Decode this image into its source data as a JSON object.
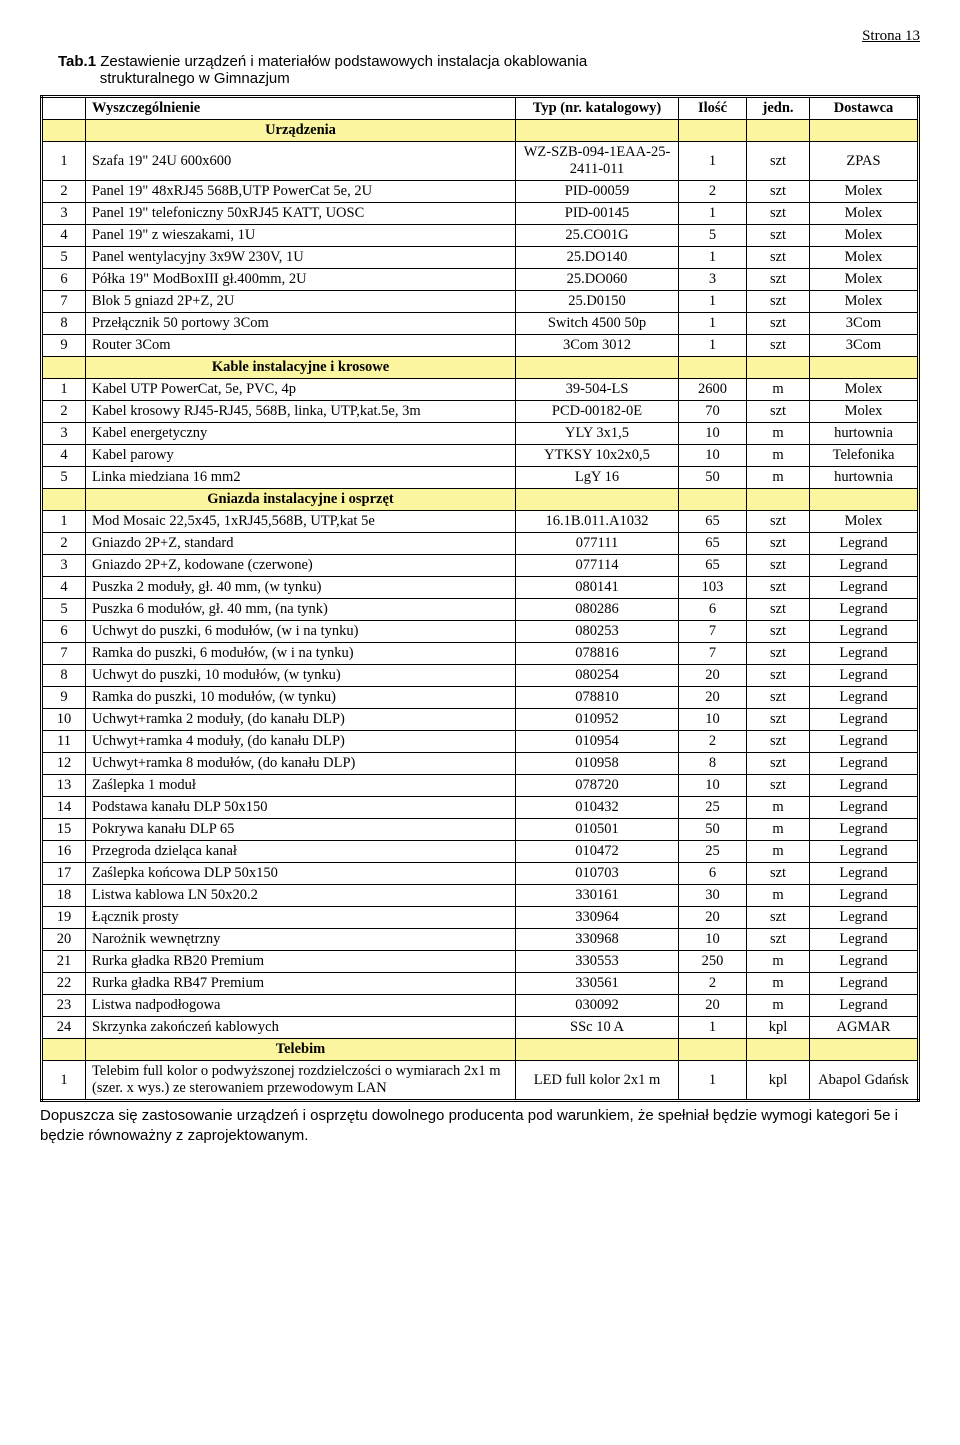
{
  "page_number_label": "Strona 13",
  "caption_intro": "Tab.1",
  "caption_line1": "Zestawienie urządzeń i materiałów podstawowych instalacja okablowania",
  "caption_line2": "strukturalnego w Gimnazjum",
  "section_bg_color": "#fbf5a0",
  "columns": {
    "desc": "Wyszczególnienie",
    "type": "Typ (nr. katalogowy)",
    "qty": "Ilość",
    "unit": "jedn.",
    "supplier": "Dostawca"
  },
  "sections": [
    {
      "title": "Urządzenia",
      "rows": [
        {
          "no": "1",
          "desc": "Szafa  19\" 24U 600x600",
          "type": "WZ-SZB-094-1EAA-25-2411-011",
          "qty": "1",
          "unit": "szt",
          "supplier": "ZPAS"
        },
        {
          "no": "2",
          "desc": "Panel 19\" 48xRJ45 568B,UTP PowerCat 5e, 2U",
          "type": "PID-00059",
          "qty": "2",
          "unit": "szt",
          "supplier": "Molex"
        },
        {
          "no": "3",
          "desc": "Panel 19\" telefoniczny 50xRJ45 KATT, UOSC",
          "type": "PID-00145",
          "qty": "1",
          "unit": "szt",
          "supplier": "Molex"
        },
        {
          "no": "4",
          "desc": "Panel 19\" z wieszakami, 1U",
          "type": "25.CO01G",
          "qty": "5",
          "unit": "szt",
          "supplier": "Molex"
        },
        {
          "no": "5",
          "desc": "Panel wentylacyjny 3x9W 230V, 1U",
          "type": "25.DO140",
          "qty": "1",
          "unit": "szt",
          "supplier": "Molex"
        },
        {
          "no": "6",
          "desc": "Półka 19\" ModBoxIII gł.400mm, 2U",
          "type": "25.DO060",
          "qty": "3",
          "unit": "szt",
          "supplier": "Molex"
        },
        {
          "no": "7",
          "desc": "Blok 5 gniazd 2P+Z, 2U",
          "type": "25.D0150",
          "qty": "1",
          "unit": "szt",
          "supplier": "Molex"
        },
        {
          "no": "8",
          "desc": "Przełącznik  50 portowy 3Com",
          "type": "Switch 4500 50p",
          "qty": "1",
          "unit": "szt",
          "supplier": "3Com"
        },
        {
          "no": "9",
          "desc": "Router 3Com",
          "type": "3Com 3012",
          "qty": "1",
          "unit": "szt",
          "supplier": "3Com"
        }
      ]
    },
    {
      "title": "Kable instalacyjne i krosowe",
      "rows": [
        {
          "no": "1",
          "desc": "Kabel UTP PowerCat, 5e, PVC, 4p",
          "type": "39-504-LS",
          "qty": "2600",
          "unit": "m",
          "supplier": "Molex"
        },
        {
          "no": "2",
          "desc": "Kabel krosowy RJ45-RJ45, 568B, linka, UTP,kat.5e, 3m",
          "type": "PCD-00182-0E",
          "qty": "70",
          "unit": "szt",
          "supplier": "Molex"
        },
        {
          "no": "3",
          "desc": "Kabel energetyczny",
          "type": "YLY 3x1,5",
          "qty": "10",
          "unit": "m",
          "supplier": "hurtownia"
        },
        {
          "no": "4",
          "desc": "Kabel parowy",
          "type": "YTKSY 10x2x0,5",
          "qty": "10",
          "unit": "m",
          "supplier": "Telefonika"
        },
        {
          "no": "5",
          "desc": "Linka miedziana 16 mm2",
          "type": "LgY 16",
          "qty": "50",
          "unit": "m",
          "supplier": "hurtownia"
        }
      ]
    },
    {
      "title": "Gniazda instalacyjne i osprzęt",
      "rows": [
        {
          "no": "1",
          "desc": "Mod Mosaic 22,5x45, 1xRJ45,568B, UTP,kat 5e",
          "type": "16.1B.011.A1032",
          "qty": "65",
          "unit": "szt",
          "supplier": "Molex"
        },
        {
          "no": "2",
          "desc": "Gniazdo 2P+Z, standard",
          "type": "077111",
          "qty": "65",
          "unit": "szt",
          "supplier": "Legrand"
        },
        {
          "no": "3",
          "desc": "Gniazdo 2P+Z, kodowane (czerwone)",
          "type": "077114",
          "qty": "65",
          "unit": "szt",
          "supplier": "Legrand"
        },
        {
          "no": "4",
          "desc": "Puszka 2 moduły, gł. 40 mm, (w tynku)",
          "type": "080141",
          "qty": "103",
          "unit": "szt",
          "supplier": "Legrand"
        },
        {
          "no": "5",
          "desc": "Puszka 6 modułów, gł. 40 mm, (na tynk)",
          "type": "080286",
          "qty": "6",
          "unit": "szt",
          "supplier": "Legrand"
        },
        {
          "no": "6",
          "desc": "Uchwyt do puszki,  6 modułów, (w i na tynku)",
          "type": "080253",
          "qty": "7",
          "unit": "szt",
          "supplier": "Legrand"
        },
        {
          "no": "7",
          "desc": "Ramka do puszki, 6 modułów, (w i na tynku)",
          "type": "078816",
          "qty": "7",
          "unit": "szt",
          "supplier": "Legrand"
        },
        {
          "no": "8",
          "desc": "Uchwyt do puszki,  10 modułów, (w tynku)",
          "type": "080254",
          "qty": "20",
          "unit": "szt",
          "supplier": "Legrand"
        },
        {
          "no": "9",
          "desc": "Ramka do puszki, 10 modułów, (w tynku)",
          "type": "078810",
          "qty": "20",
          "unit": "szt",
          "supplier": "Legrand"
        },
        {
          "no": "10",
          "desc": "Uchwyt+ramka 2 moduły, (do kanału DLP)",
          "type": "010952",
          "qty": "10",
          "unit": "szt",
          "supplier": "Legrand"
        },
        {
          "no": "11",
          "desc": "Uchwyt+ramka 4 moduły, (do kanału DLP)",
          "type": "010954",
          "qty": "2",
          "unit": "szt",
          "supplier": "Legrand"
        },
        {
          "no": "12",
          "desc": "Uchwyt+ramka 8 modułów, (do kanału DLP)",
          "type": "010958",
          "qty": "8",
          "unit": "szt",
          "supplier": "Legrand"
        },
        {
          "no": "13",
          "desc": "Zaślepka 1 moduł",
          "type": "078720",
          "qty": "10",
          "unit": "szt",
          "supplier": "Legrand"
        },
        {
          "no": "14",
          "desc": "Podstawa kanału  DLP 50x150",
          "type": "010432",
          "qty": "25",
          "unit": "m",
          "supplier": "Legrand"
        },
        {
          "no": "15",
          "desc": "Pokrywa kanału DLP 65",
          "type": "010501",
          "qty": "50",
          "unit": "m",
          "supplier": "Legrand"
        },
        {
          "no": "16",
          "desc": "Przegroda dzieląca kanał",
          "type": "010472",
          "qty": "25",
          "unit": "m",
          "supplier": "Legrand"
        },
        {
          "no": "17",
          "desc": "Zaślepka końcowa DLP 50x150",
          "type": "010703",
          "qty": "6",
          "unit": "szt",
          "supplier": "Legrand"
        },
        {
          "no": "18",
          "desc": "Listwa kablowa LN 50x20.2",
          "type": "330161",
          "qty": "30",
          "unit": "m",
          "supplier": "Legrand"
        },
        {
          "no": "19",
          "desc": "Łącznik prosty",
          "type": "330964",
          "qty": "20",
          "unit": "szt",
          "supplier": "Legrand"
        },
        {
          "no": "20",
          "desc": "Narożnik wewnętrzny",
          "type": "330968",
          "qty": "10",
          "unit": "szt",
          "supplier": "Legrand"
        },
        {
          "no": "21",
          "desc": "Rurka gładka RB20  Premium",
          "type": "330553",
          "qty": "250",
          "unit": "m",
          "supplier": "Legrand"
        },
        {
          "no": "22",
          "desc": "Rurka gładka RB47 Premium",
          "type": "330561",
          "qty": "2",
          "unit": "m",
          "supplier": "Legrand"
        },
        {
          "no": "23",
          "desc": "Listwa nadpodłogowa",
          "type": "030092",
          "qty": "20",
          "unit": "m",
          "supplier": "Legrand"
        },
        {
          "no": "24",
          "desc": "Skrzynka zakończeń kablowych",
          "type": "SSc 10 A",
          "qty": "1",
          "unit": "kpl",
          "supplier": "AGMAR"
        }
      ]
    },
    {
      "title": "Telebim",
      "rows": [
        {
          "no": "1",
          "desc": "Telebim full kolor o podwyższonej rozdzielczości o wymiarach 2x1 m (szer. x wys.) ze sterowaniem przewodowym LAN",
          "type": "LED full kolor 2x1 m",
          "qty": "1",
          "unit": "kpl",
          "supplier": "Abapol Gdańsk"
        }
      ]
    }
  ],
  "footnote": "Dopuszcza się zastosowanie urządzeń i osprzętu dowolnego producenta pod warunkiem, że spełniał będzie wymogi kategori 5e i będzie równoważny z zaprojektowanym."
}
